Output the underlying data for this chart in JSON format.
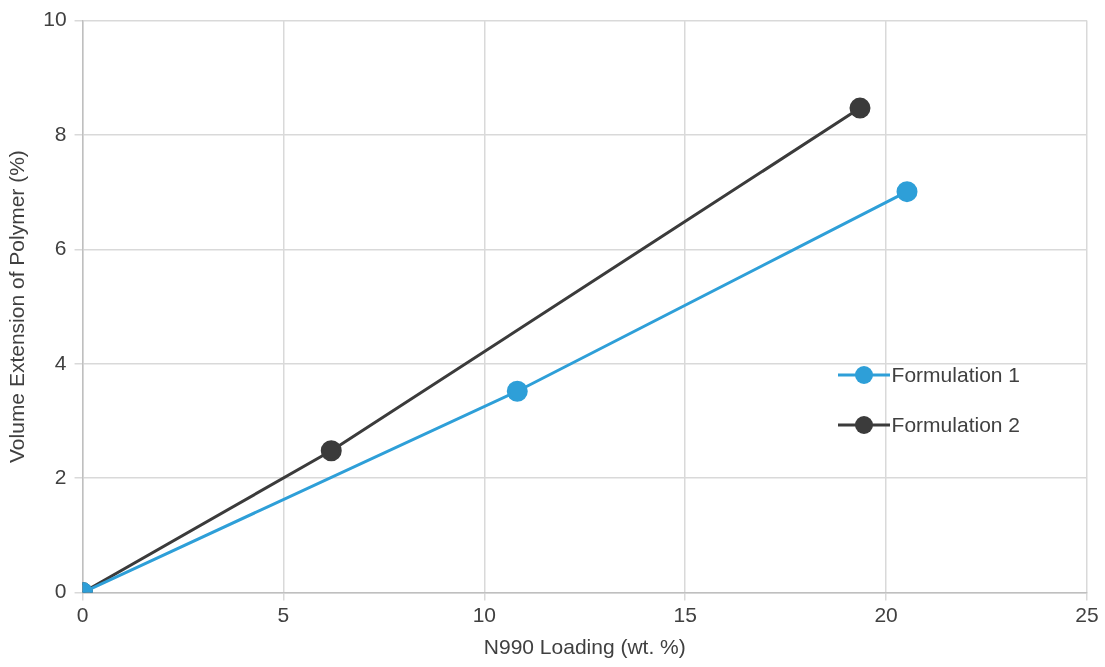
{
  "chart_data": {
    "type": "line",
    "xlabel": "N990 Loading (wt. %)",
    "ylabel": "Volume Extension of Polymer (%)",
    "xlim": [
      0,
      25
    ],
    "xticks": [
      0,
      5,
      10,
      15,
      20,
      25
    ],
    "ylim": [
      0,
      10
    ],
    "yticks": [
      0,
      2,
      4,
      6,
      8,
      10
    ],
    "grid": true,
    "legend": "right",
    "marker": "circle",
    "line_style": "solid",
    "series": [
      {
        "name": "Formulation 1",
        "color": "#2e9fd8",
        "x": [
          0,
          10.82,
          20.52
        ],
        "values": [
          0,
          3.52,
          7.01
        ]
      },
      {
        "name": "Formulation 2",
        "color": "#3b3b3b",
        "x": [
          0,
          6.19,
          19.35
        ],
        "values": [
          0,
          2.48,
          8.47
        ]
      }
    ]
  }
}
